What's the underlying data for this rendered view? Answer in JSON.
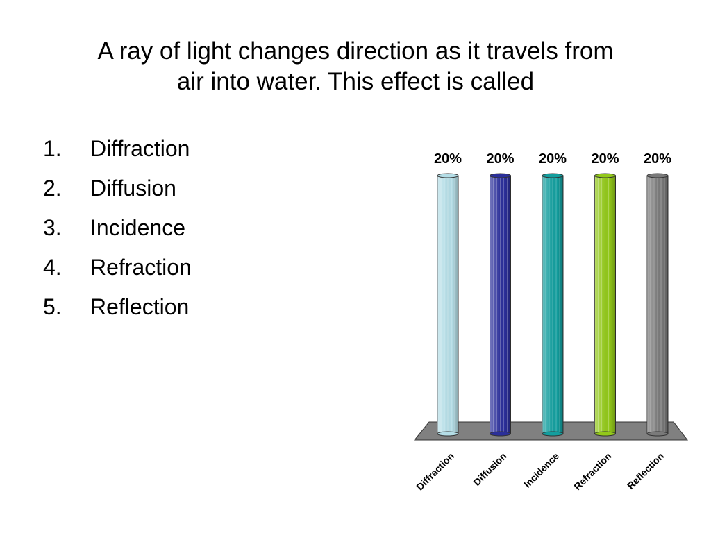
{
  "slide": {
    "question_lines": [
      "A ray of light changes direction as it travels from",
      "air into water.  This effect is called"
    ],
    "answers": [
      {
        "num": "1.",
        "label": "Diffraction"
      },
      {
        "num": "2.",
        "label": "Diffusion"
      },
      {
        "num": "3.",
        "label": "Incidence"
      },
      {
        "num": "4.",
        "label": "Refraction"
      },
      {
        "num": "5.",
        "label": "Reflection"
      }
    ]
  },
  "chart_data": {
    "type": "bar",
    "categories": [
      "Diffraction",
      "Diffusion",
      "Incidence",
      "Refraction",
      "Reflection"
    ],
    "values": [
      20,
      20,
      20,
      20,
      20
    ],
    "data_labels": [
      "20%",
      "20%",
      "20%",
      "20%",
      "20%"
    ],
    "colors": [
      "#b4dde6",
      "#2b2f9a",
      "#139e9e",
      "#92c81a",
      "#7a7a7a"
    ],
    "ylim": [
      0,
      20
    ],
    "grid": false,
    "legend": "none",
    "title": "",
    "xlabel": "",
    "ylabel": ""
  }
}
